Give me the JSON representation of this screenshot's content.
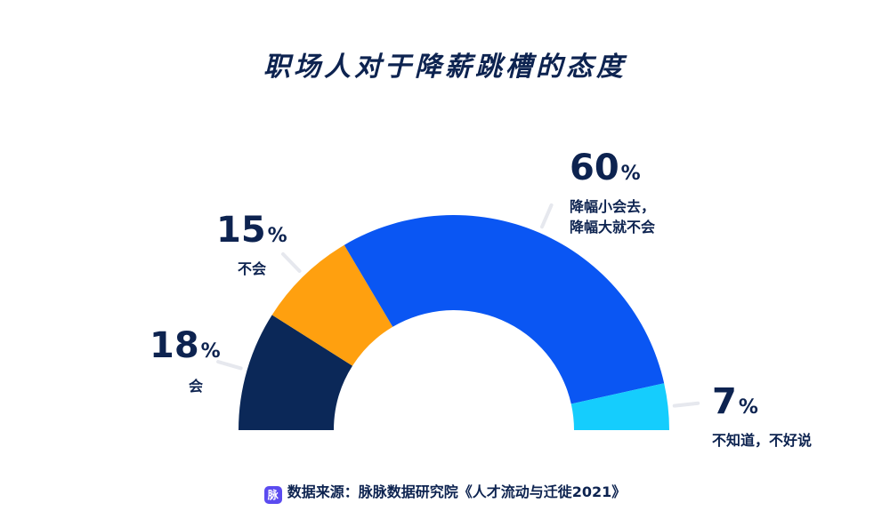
{
  "chart_data": {
    "type": "pie",
    "title": "职场人对于降薪跳槽的态度",
    "series": [
      {
        "pct": "18",
        "label": "会",
        "value": 18,
        "color": "#0b2858"
      },
      {
        "pct": "15",
        "label": "不会",
        "value": 15,
        "color": "#ffa00f"
      },
      {
        "pct": "60",
        "label": "降幅小会去，降幅大就不会",
        "label_lines": [
          "降幅小会去，",
          "降幅大就不会"
        ],
        "value": 60,
        "color": "#0a56f3"
      },
      {
        "pct": "7",
        "label": "不知道，不好说",
        "value": 7,
        "color": "#15cdfd"
      }
    ],
    "percent_sign": "%"
  },
  "footer": {
    "logo": "脉",
    "text": "数据来源：脉脉数据研究院《人才流动与迁徙2021》"
  }
}
